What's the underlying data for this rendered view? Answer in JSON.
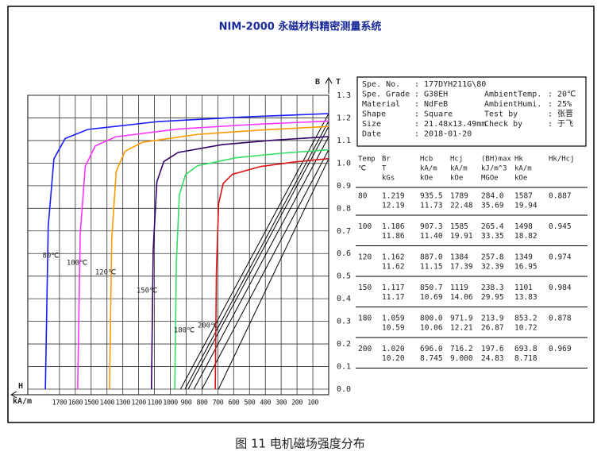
{
  "title": "NIM-2000 永磁材料精密测量系统",
  "caption": "图 11 电机磁场强度分布",
  "info": [
    {
      "label": "Spe. No.",
      "value": ": 177DYH211G\\80"
    },
    {
      "label": "Spe. Grade",
      "value": ": G38EH",
      "label2": "AmbientTemp.",
      "value2": ": 20℃"
    },
    {
      "label": "Material",
      "value": ": NdFeB",
      "label2": "AmbientHumi.",
      "value2": ": 25%"
    },
    {
      "label": "Shape",
      "value": ": Square",
      "label2": "Test by",
      "value2": ": 张晋"
    },
    {
      "label": "Size",
      "value": ": 21.48x13.49mm",
      "label2": "Check by",
      "value2": ": 于飞"
    },
    {
      "label": "Date",
      "value": ": 2018-01-20"
    }
  ],
  "table": {
    "header": [
      [
        "Temp",
        "℃"
      ],
      [
        "Br",
        "T",
        "kGs"
      ],
      [
        "Hcb",
        "kA/m",
        "kOe"
      ],
      [
        "Hcj",
        "kA/m",
        "kOe"
      ],
      [
        "(BH)max",
        "kJ/m^3",
        "MGOe"
      ],
      [
        "Hk",
        "kA/m",
        "kOe"
      ],
      [
        "Hk/Hcj"
      ]
    ],
    "rows": [
      [
        [
          "80"
        ],
        [
          "1.219",
          "12.19"
        ],
        [
          "935.5",
          "11.73"
        ],
        [
          "1789",
          "22.48"
        ],
        [
          "284.0",
          "35.69"
        ],
        [
          "1587",
          "19.94"
        ],
        [
          "0.887"
        ]
      ],
      [
        [
          "100"
        ],
        [
          "1.186",
          "11.86"
        ],
        [
          "907.3",
          "11.40"
        ],
        [
          "1585",
          "19.91"
        ],
        [
          "265.4",
          "33.35"
        ],
        [
          "1498",
          "18.82"
        ],
        [
          "0.945"
        ]
      ],
      [
        [
          "120"
        ],
        [
          "1.162",
          "11.62"
        ],
        [
          "887.0",
          "11.15"
        ],
        [
          "1384",
          "17.39"
        ],
        [
          "257.8",
          "32.39"
        ],
        [
          "1349",
          "16.95"
        ],
        [
          "0.974"
        ]
      ],
      [
        [
          "150"
        ],
        [
          "1.117",
          "11.17"
        ],
        [
          "850.7",
          "10.69"
        ],
        [
          "1119",
          "14.06"
        ],
        [
          "238.3",
          "29.95"
        ],
        [
          "1101",
          "13.83"
        ],
        [
          "0.984"
        ]
      ],
      [
        [
          "180"
        ],
        [
          "1.059",
          "10.59"
        ],
        [
          "800.0",
          "10.06"
        ],
        [
          "971.9",
          "12.21"
        ],
        [
          "213.9",
          "26.87"
        ],
        [
          "853.2",
          "10.72"
        ],
        [
          "0.878"
        ]
      ],
      [
        [
          "200"
        ],
        [
          "1.020",
          "10.20"
        ],
        [
          "696.0",
          "8.745"
        ],
        [
          "716.2",
          "9.000"
        ],
        [
          "197.6",
          "24.83"
        ],
        [
          "693.8",
          "8.718"
        ],
        [
          "0.969"
        ]
      ]
    ]
  },
  "chart_data": {
    "type": "line",
    "x_label": "H",
    "x_unit": "kA/m",
    "y_label": "B",
    "y_unit": "T",
    "xlim": [
      1900,
      0
    ],
    "ylim": [
      0,
      1.3
    ],
    "xticks": [
      1700,
      1600,
      1500,
      1400,
      1300,
      1200,
      1100,
      1000,
      900,
      800,
      700,
      600,
      500,
      400,
      300,
      200,
      100
    ],
    "yticks": [
      {
        "value": 0,
        "label": "0.0"
      },
      0.1,
      0.2,
      0.3,
      0.4,
      0.5,
      0.6,
      0.7,
      0.8,
      0.9,
      {
        "value": 1,
        "label": "1.0"
      },
      1.1,
      1.2,
      1.3
    ],
    "grid": true,
    "series": [
      {
        "name": "80℃",
        "color": "#1a1aff",
        "x": [
          0,
          537,
          1073,
          1521,
          1664,
          1735,
          1771,
          1789
        ],
        "values": [
          1.219,
          1.204,
          1.184,
          1.149,
          1.109,
          1.019,
          0.719,
          0
        ]
      },
      {
        "name": "100℃",
        "color": "#ff33ff",
        "x": [
          0,
          476,
          951,
          1347,
          1474,
          1537,
          1569,
          1585
        ],
        "values": [
          1.186,
          1.171,
          1.151,
          1.116,
          1.076,
          0.986,
          0.686,
          0
        ]
      },
      {
        "name": "120℃",
        "color": "#ff9900",
        "x": [
          0,
          415,
          830,
          1176,
          1287,
          1342,
          1370,
          1384
        ],
        "values": [
          1.162,
          1.147,
          1.127,
          1.092,
          1.052,
          0.962,
          0.662,
          0
        ]
      },
      {
        "name": "150℃",
        "color": "#330066",
        "x": [
          0,
          336,
          671,
          951,
          1041,
          1085,
          1108,
          1119
        ],
        "values": [
          1.117,
          1.102,
          1.082,
          1.047,
          1.007,
          0.917,
          0.617,
          0
        ]
      },
      {
        "name": "180℃",
        "color": "#33dd66",
        "x": [
          0,
          292,
          583,
          826,
          904,
          943,
          962,
          971.9
        ],
        "values": [
          1.059,
          1.044,
          1.024,
          0.989,
          0.949,
          0.859,
          0.559,
          0
        ]
      },
      {
        "name": "200℃",
        "color": "#dd1111",
        "x": [
          0,
          215,
          430,
          609,
          666,
          695,
          709,
          716.2
        ],
        "values": [
          1.02,
          1.005,
          0.985,
          0.95,
          0.91,
          0.82,
          0.52,
          0
        ]
      }
    ],
    "b_lines": [
      {
        "color": "#000000",
        "x": [
          0,
          935.5
        ],
        "values": [
          1.219,
          0
        ]
      },
      {
        "color": "#000000",
        "x": [
          0,
          907.3
        ],
        "values": [
          1.186,
          0
        ]
      },
      {
        "color": "#000000",
        "x": [
          0,
          887.0
        ],
        "values": [
          1.162,
          0
        ]
      },
      {
        "color": "#000000",
        "x": [
          0,
          850.7
        ],
        "values": [
          1.117,
          0
        ]
      },
      {
        "color": "#000000",
        "x": [
          0,
          800.0
        ],
        "values": [
          1.059,
          0
        ]
      },
      {
        "color": "#000000",
        "x": [
          0,
          696.0
        ],
        "values": [
          1.02,
          0
        ]
      }
    ]
  }
}
